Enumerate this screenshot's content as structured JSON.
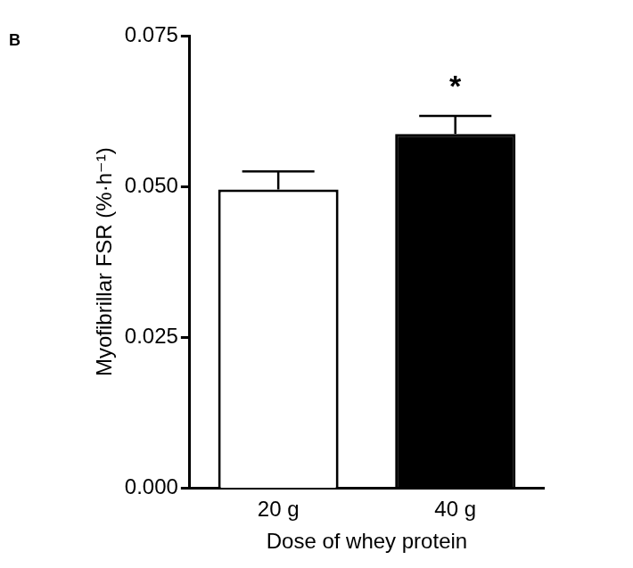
{
  "chart_data": {
    "type": "bar",
    "panel_label": "B",
    "categories": [
      "20 g",
      "40 g"
    ],
    "values": [
      0.0495,
      0.0587
    ],
    "errors": [
      0.003,
      0.003
    ],
    "colors": [
      "#ffffff",
      "#000000"
    ],
    "x_label": "Dose of whey protein",
    "y_label": "Myofibrillar FSR (%·h⁻¹)",
    "ylim": [
      0,
      0.075
    ],
    "yticks": [
      {
        "value": 0,
        "label": "0.000"
      },
      {
        "value": 0.025,
        "label": "0.025"
      },
      {
        "value": 0.05,
        "label": "0.050"
      },
      {
        "value": 0.075,
        "label": "0.075"
      }
    ],
    "annotations": [
      {
        "text": "*",
        "category": "40 g"
      }
    ],
    "grid": false
  }
}
